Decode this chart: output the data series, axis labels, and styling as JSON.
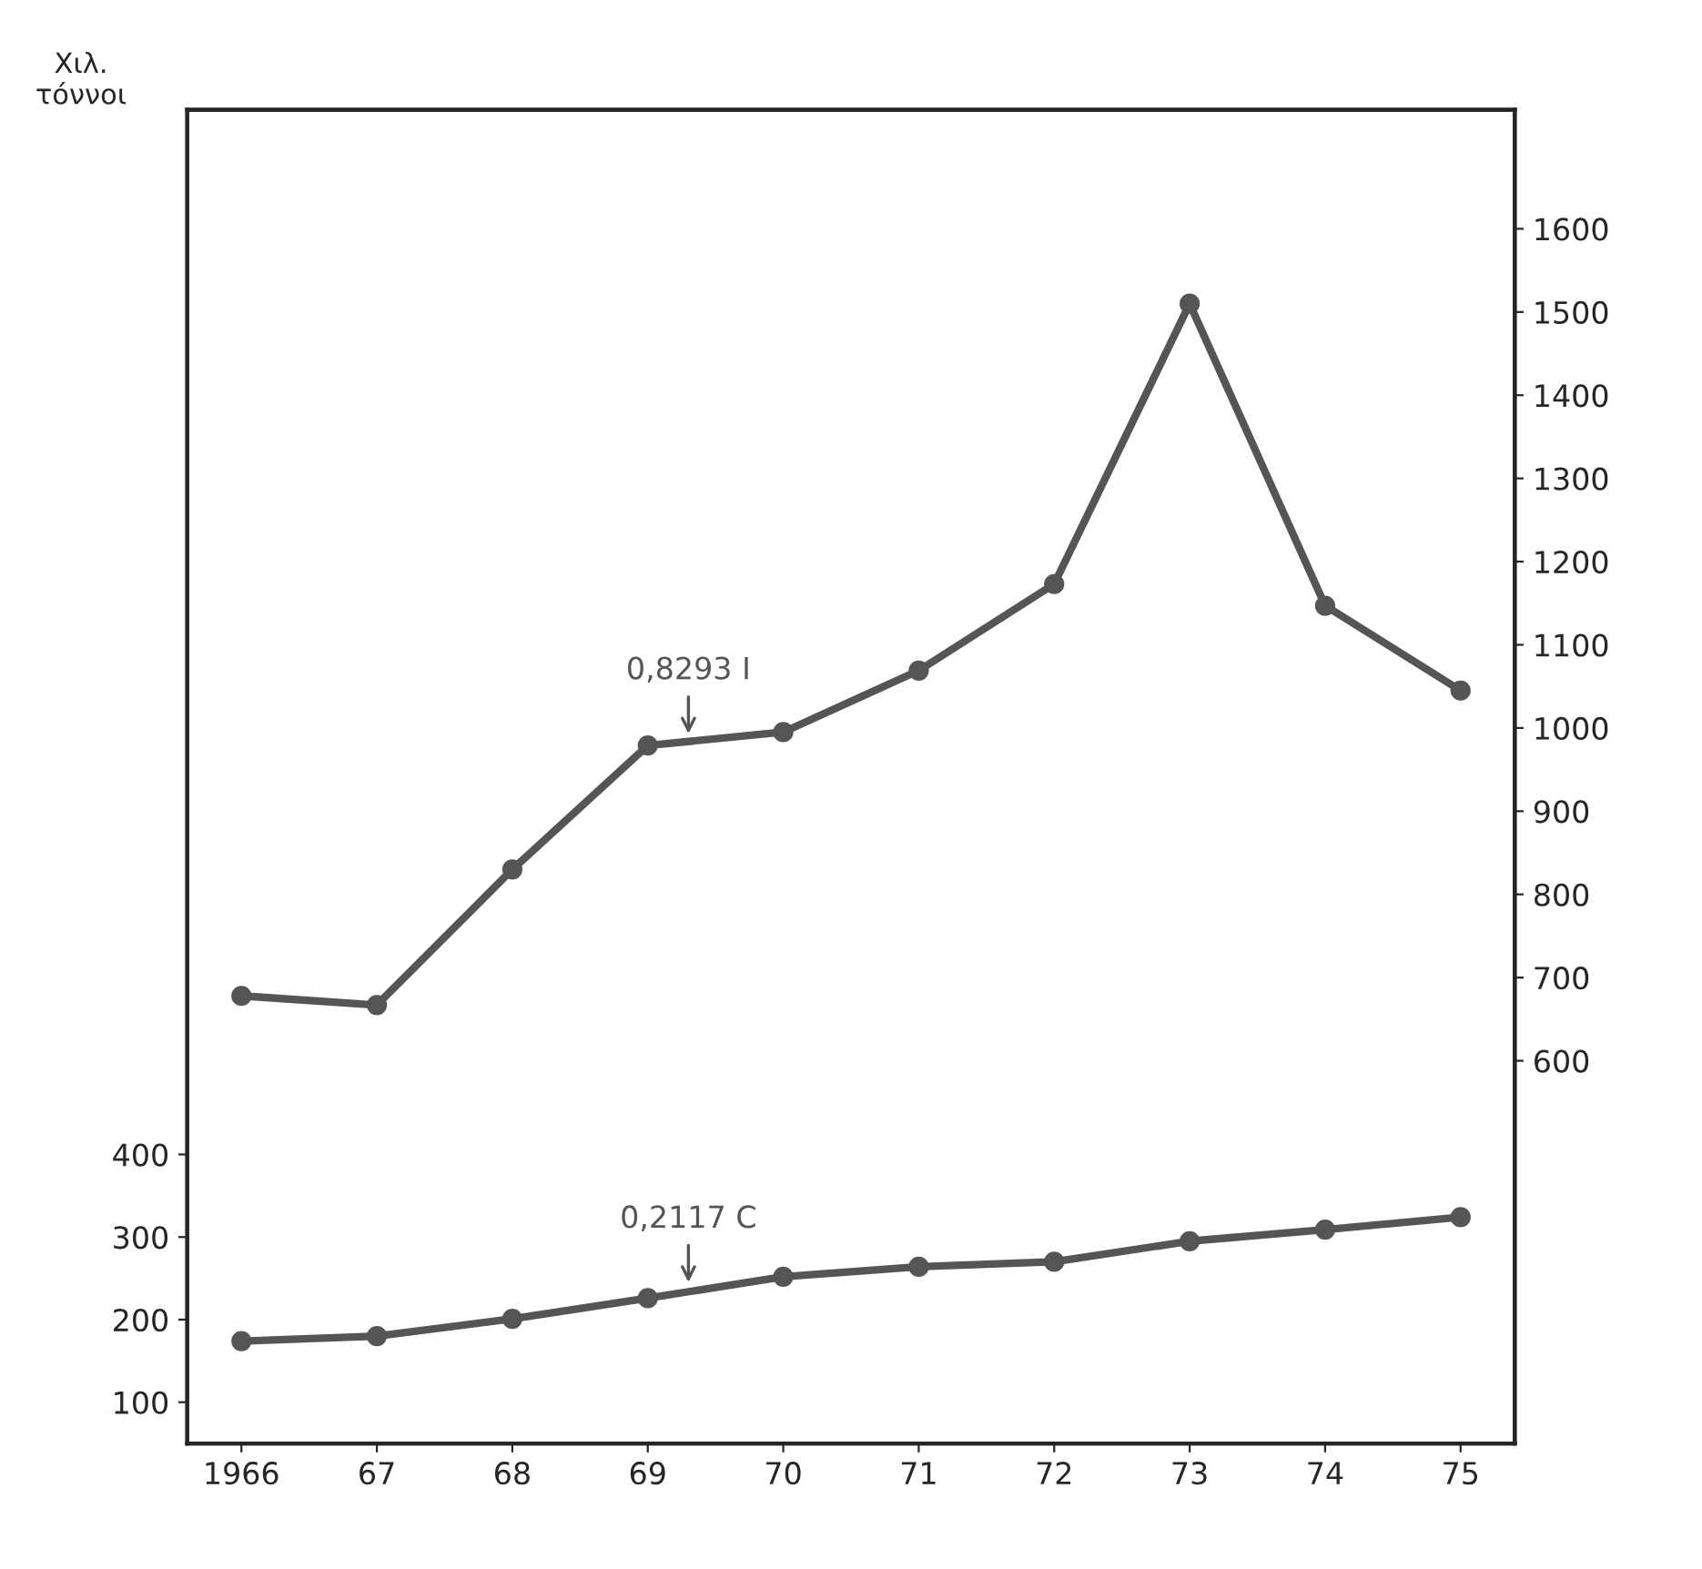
{
  "chart_data": {
    "type": "line",
    "ylabel": "Χιλ.\nτόννοι",
    "categories": [
      "1966",
      "67",
      "68",
      "69",
      "70",
      "71",
      "72",
      "73",
      "74",
      "75"
    ],
    "series": [
      {
        "name": "0,8293 I",
        "color": "#555555",
        "axis": "y2",
        "values": [
          678,
          667,
          830,
          979,
          995,
          1069,
          1173,
          1510,
          1147,
          1045
        ]
      },
      {
        "name": "0,2117 C",
        "color": "#555555",
        "axis": "y",
        "values": [
          174,
          180,
          201,
          226,
          252,
          264,
          270,
          295,
          309,
          324
        ]
      }
    ],
    "ylim": [
      50,
      1665
    ],
    "yticks": [
      100,
      200,
      300,
      400
    ],
    "y2lim": [
      140,
      1743
    ],
    "y2ticks": [
      600,
      700,
      800,
      900,
      1000,
      1100,
      1200,
      1300,
      1400,
      1500,
      1600
    ],
    "marker": "circle",
    "line_style": "solid",
    "grid": false,
    "legend": false
  }
}
